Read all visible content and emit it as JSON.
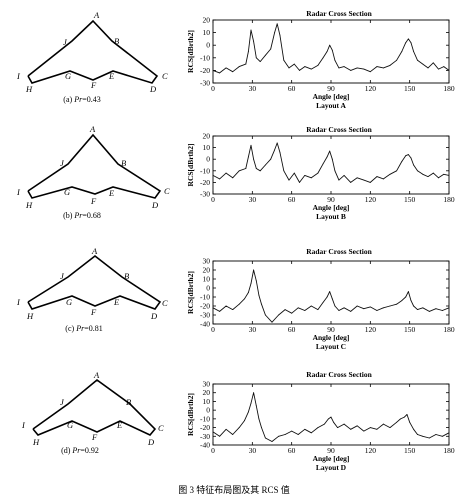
{
  "figure_caption": "图 3   特征布局图及其 RCS 值",
  "chart_data": [
    {
      "type": "line",
      "title": "Radar Cross Section",
      "xlabel": "Angle [deg]",
      "ylabel": "RCS[dBrth2]",
      "layout_label": "Layout A",
      "xlim": [
        0,
        180
      ],
      "ylim": [
        -30,
        20
      ],
      "x_ticks": [
        0,
        30,
        60,
        90,
        120,
        150,
        180
      ],
      "y_ticks": [
        -30,
        -20,
        -10,
        0,
        10,
        20
      ],
      "diagram_caption": "(a) Pr=0.43",
      "caption_prefix": "(a) ",
      "caption_var": "Pr",
      "caption_value": "=0.43",
      "vertex_labels": [
        "A",
        "B",
        "C",
        "D",
        "E",
        "F",
        "G",
        "H",
        "I",
        "J"
      ],
      "series": [
        {
          "x": [
            0,
            5,
            10,
            15,
            20,
            25,
            27,
            29,
            31,
            33,
            36,
            40,
            44,
            47,
            49,
            51,
            54,
            58,
            62,
            66,
            70,
            75,
            80,
            84,
            87,
            89,
            91,
            93,
            96,
            100,
            105,
            110,
            115,
            120,
            125,
            130,
            135,
            140,
            144,
            147,
            149,
            151,
            153,
            156,
            160,
            164,
            168,
            172,
            176,
            180
          ],
          "y": [
            -20,
            -22,
            -18,
            -21,
            -17,
            -15,
            -5,
            12,
            3,
            -10,
            -13,
            -8,
            -3,
            10,
            17,
            8,
            -12,
            -18,
            -15,
            -20,
            -17,
            -19,
            -16,
            -10,
            -5,
            0,
            -4,
            -12,
            -18,
            -17,
            -20,
            -18,
            -19,
            -21,
            -17,
            -18,
            -16,
            -12,
            -5,
            2,
            5,
            2,
            -5,
            -12,
            -15,
            -18,
            -14,
            -19,
            -17,
            -20
          ]
        }
      ]
    },
    {
      "type": "line",
      "title": "Radar Cross Section",
      "xlabel": "Angle [deg]",
      "ylabel": "RCS[dBrth2]",
      "layout_label": "Layout B",
      "xlim": [
        0,
        180
      ],
      "ylim": [
        -30,
        20
      ],
      "x_ticks": [
        0,
        30,
        60,
        90,
        120,
        150,
        180
      ],
      "y_ticks": [
        -30,
        -20,
        -10,
        0,
        10,
        20
      ],
      "diagram_caption": "(b) Pr=0.68",
      "caption_prefix": "(b) ",
      "caption_var": "Pr",
      "caption_value": "=0.68",
      "vertex_labels": [
        "A",
        "B",
        "C",
        "D",
        "E",
        "F",
        "G",
        "H",
        "I",
        "J"
      ],
      "series": [
        {
          "x": [
            0,
            5,
            10,
            15,
            20,
            25,
            27,
            29,
            31,
            33,
            36,
            40,
            44,
            47,
            49,
            51,
            54,
            58,
            62,
            66,
            70,
            75,
            80,
            84,
            87,
            89,
            91,
            93,
            96,
            100,
            105,
            110,
            115,
            120,
            125,
            130,
            135,
            140,
            144,
            147,
            149,
            151,
            153,
            156,
            160,
            164,
            168,
            172,
            176,
            180
          ],
          "y": [
            -14,
            -17,
            -12,
            -16,
            -10,
            -8,
            2,
            12,
            0,
            -8,
            -10,
            -5,
            0,
            8,
            14,
            6,
            -10,
            -18,
            -12,
            -20,
            -14,
            -16,
            -12,
            -4,
            2,
            7,
            0,
            -10,
            -18,
            -14,
            -20,
            -16,
            -18,
            -20,
            -15,
            -17,
            -13,
            -10,
            -2,
            3,
            4,
            1,
            -5,
            -10,
            -13,
            -15,
            -12,
            -16,
            -13,
            -14
          ]
        }
      ]
    },
    {
      "type": "line",
      "title": "Radar Cross Section",
      "xlabel": "Angle [deg]",
      "ylabel": "RCS[dBrth2]",
      "layout_label": "Layout C",
      "xlim": [
        0,
        180
      ],
      "ylim": [
        -40,
        30
      ],
      "x_ticks": [
        0,
        30,
        60,
        90,
        120,
        150,
        180
      ],
      "y_ticks": [
        -40,
        -30,
        -20,
        -10,
        0,
        10,
        20,
        30
      ],
      "diagram_caption": "(c) Pr=0.81",
      "caption_prefix": "(c) ",
      "caption_var": "Pr",
      "caption_value": "=0.81",
      "vertex_labels": [
        "A",
        "B",
        "C",
        "D",
        "E",
        "F",
        "G",
        "H",
        "I",
        "J"
      ],
      "series": [
        {
          "x": [
            0,
            5,
            10,
            15,
            20,
            24,
            27,
            29,
            31,
            33,
            35,
            37,
            40,
            45,
            50,
            55,
            60,
            65,
            70,
            75,
            80,
            84,
            87,
            89,
            91,
            93,
            96,
            100,
            105,
            110,
            115,
            120,
            125,
            130,
            135,
            140,
            144,
            147,
            149,
            151,
            153,
            156,
            160,
            165,
            170,
            175,
            180
          ],
          "y": [
            -22,
            -26,
            -20,
            -24,
            -18,
            -12,
            -5,
            5,
            20,
            8,
            -8,
            -18,
            -30,
            -38,
            -30,
            -24,
            -28,
            -22,
            -25,
            -20,
            -24,
            -16,
            -10,
            -4,
            -12,
            -20,
            -25,
            -22,
            -26,
            -20,
            -23,
            -21,
            -25,
            -22,
            -20,
            -18,
            -14,
            -10,
            -4,
            -14,
            -20,
            -24,
            -22,
            -26,
            -23,
            -25,
            -22
          ]
        }
      ]
    },
    {
      "type": "line",
      "title": "Radar Cross Section",
      "xlabel": "Angle [deg]",
      "ylabel": "RCS[dBrth2]",
      "layout_label": "Layout D",
      "xlim": [
        0,
        180
      ],
      "ylim": [
        -40,
        30
      ],
      "x_ticks": [
        0,
        30,
        60,
        90,
        120,
        150,
        180
      ],
      "y_ticks": [
        -40,
        -30,
        -20,
        -10,
        0,
        10,
        20,
        30
      ],
      "diagram_caption": "(d) Pr=0.92",
      "caption_prefix": "(d) ",
      "caption_var": "Pr",
      "caption_value": "=0.92",
      "vertex_labels": [
        "A",
        "B",
        "C",
        "D",
        "E",
        "F",
        "G",
        "H",
        "I",
        "J"
      ],
      "series": [
        {
          "x": [
            0,
            5,
            10,
            15,
            20,
            24,
            27,
            29,
            31,
            33,
            35,
            37,
            40,
            45,
            50,
            55,
            60,
            65,
            70,
            75,
            80,
            85,
            88,
            90,
            92,
            95,
            100,
            105,
            110,
            115,
            120,
            125,
            130,
            135,
            140,
            143,
            146,
            148,
            150,
            153,
            156,
            160,
            165,
            170,
            175,
            180
          ],
          "y": [
            -25,
            -30,
            -22,
            -28,
            -20,
            -12,
            -2,
            8,
            20,
            5,
            -10,
            -20,
            -32,
            -36,
            -30,
            -28,
            -24,
            -28,
            -22,
            -26,
            -20,
            -16,
            -10,
            -8,
            -14,
            -20,
            -16,
            -22,
            -18,
            -24,
            -20,
            -22,
            -16,
            -20,
            -14,
            -10,
            -8,
            -5,
            -14,
            -22,
            -28,
            -30,
            -32,
            -28,
            -30,
            -26
          ]
        }
      ]
    }
  ]
}
